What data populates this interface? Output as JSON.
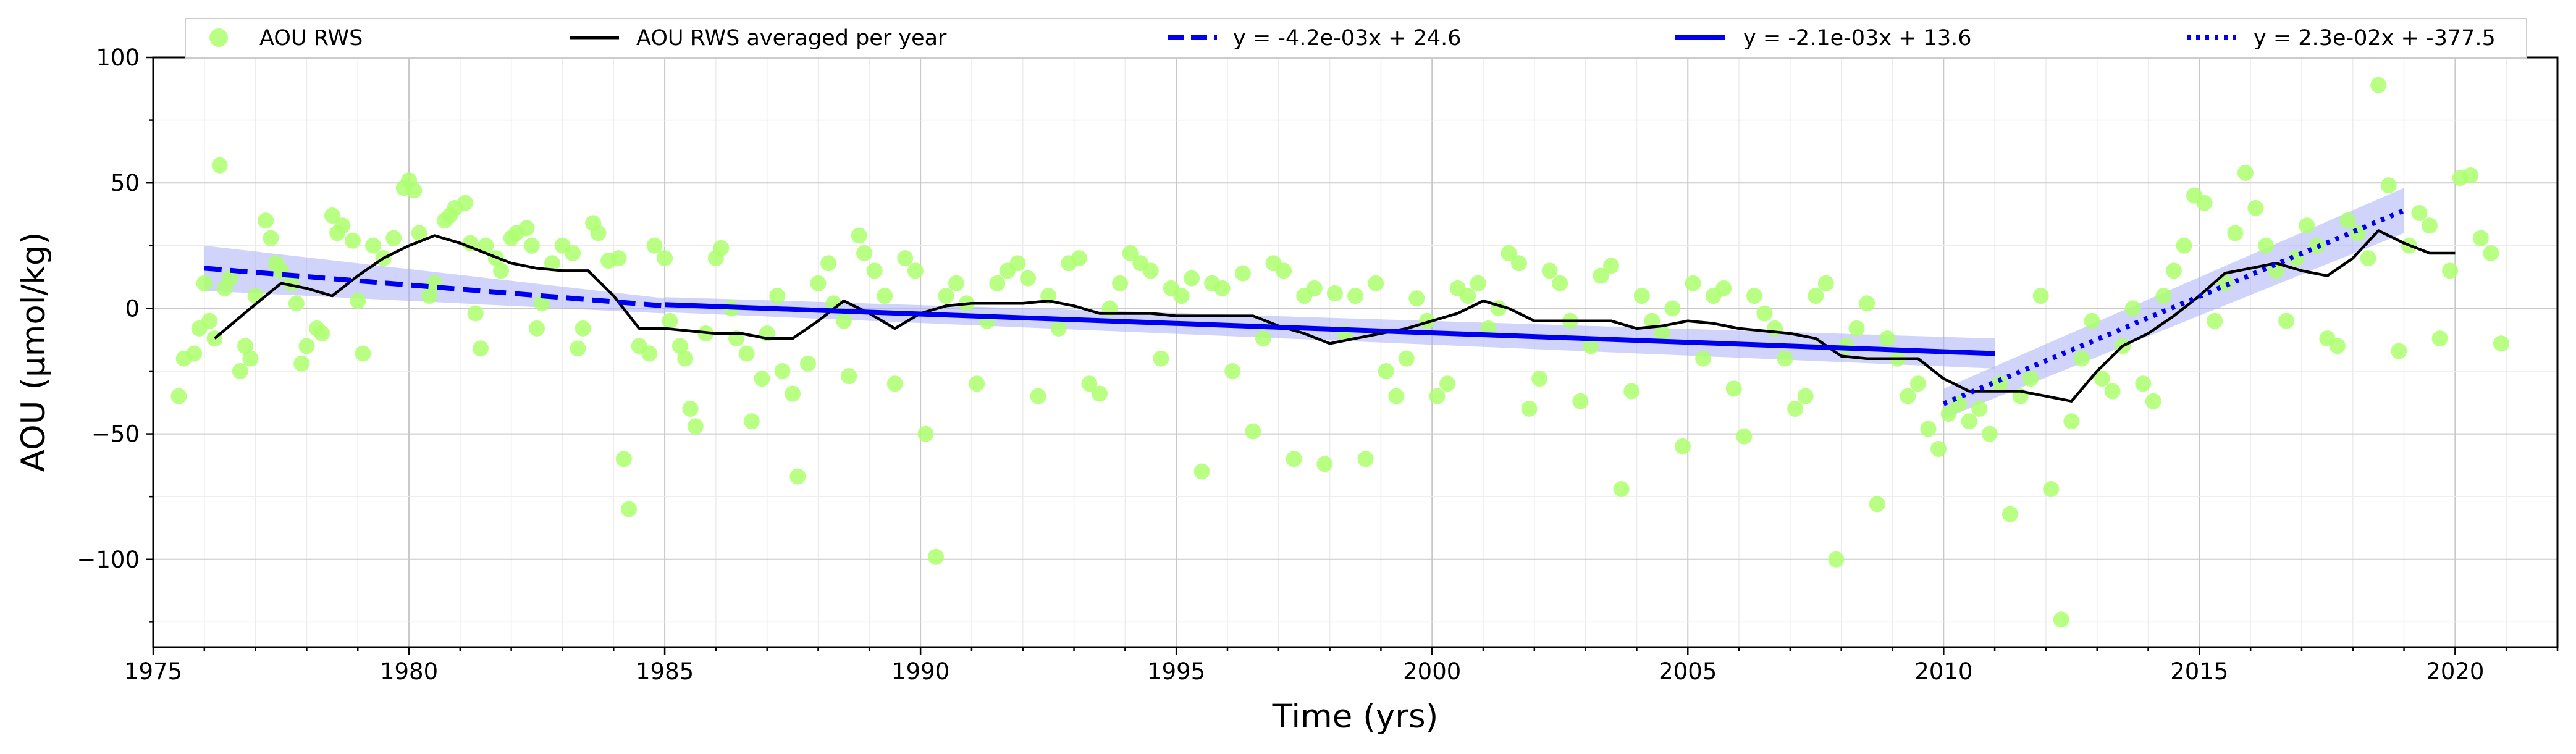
{
  "chart_data": {
    "type": "scatter",
    "title": "",
    "xlabel": "Time (yrs)",
    "ylabel": "AOU (µmol/kg)",
    "xlim": [
      1975,
      2022
    ],
    "ylim": [
      -135,
      100
    ],
    "xticks": [
      1975,
      1980,
      1985,
      1990,
      1995,
      2000,
      2005,
      2010,
      2015,
      2020
    ],
    "yticks": [
      -100,
      -50,
      0,
      50,
      100
    ],
    "tick_labels_x": [
      "1975",
      "1980",
      "1985",
      "1990",
      "1995",
      "2000",
      "2005",
      "2010",
      "2015",
      "2020"
    ],
    "tick_labels_y": [
      "−100",
      "−50",
      "0",
      "50",
      "100"
    ],
    "grid": true,
    "legend_position": "top",
    "legend": [
      {
        "label": "AOU RWS",
        "kind": "marker",
        "color": "#adff6f"
      },
      {
        "label": "AOU RWS averaged per year",
        "kind": "line",
        "color": "#000000"
      },
      {
        "label": "y = -4.2e-03x + 24.6",
        "kind": "dashed",
        "color": "#0000ee"
      },
      {
        "label": "y = -2.1e-03x + 13.6",
        "kind": "solid",
        "color": "#0000ee"
      },
      {
        "label": "y = 2.3e-02x + -377.5",
        "kind": "dotted",
        "color": "#0000ee"
      }
    ],
    "colors": {
      "scatter": "#adff6f",
      "average": "#000000",
      "fit": "#0000ee",
      "band": "#aab0f5"
    },
    "scatter_points": [
      [
        1975.5,
        -35
      ],
      [
        1975.6,
        -20
      ],
      [
        1975.8,
        -18
      ],
      [
        1975.9,
        -8
      ],
      [
        1976.0,
        10
      ],
      [
        1976.1,
        -5
      ],
      [
        1976.2,
        -12
      ],
      [
        1976.3,
        57
      ],
      [
        1976.4,
        8
      ],
      [
        1976.5,
        12
      ],
      [
        1976.7,
        -25
      ],
      [
        1976.8,
        -15
      ],
      [
        1976.9,
        -20
      ],
      [
        1977.0,
        5
      ],
      [
        1977.2,
        35
      ],
      [
        1977.3,
        28
      ],
      [
        1977.4,
        18
      ],
      [
        1977.5,
        15
      ],
      [
        1977.7,
        10
      ],
      [
        1977.8,
        2
      ],
      [
        1977.9,
        -22
      ],
      [
        1978.0,
        -15
      ],
      [
        1978.2,
        -8
      ],
      [
        1978.3,
        -10
      ],
      [
        1978.5,
        37
      ],
      [
        1978.6,
        30
      ],
      [
        1978.7,
        33
      ],
      [
        1978.9,
        27
      ],
      [
        1979.0,
        3
      ],
      [
        1979.1,
        -18
      ],
      [
        1979.3,
        25
      ],
      [
        1979.5,
        20
      ],
      [
        1979.7,
        28
      ],
      [
        1979.9,
        48
      ],
      [
        1980.0,
        51
      ],
      [
        1980.1,
        47
      ],
      [
        1980.2,
        30
      ],
      [
        1980.4,
        5
      ],
      [
        1980.5,
        10
      ],
      [
        1980.7,
        35
      ],
      [
        1980.8,
        37
      ],
      [
        1980.9,
        40
      ],
      [
        1981.1,
        42
      ],
      [
        1981.2,
        26
      ],
      [
        1981.3,
        -2
      ],
      [
        1981.4,
        -16
      ],
      [
        1981.5,
        25
      ],
      [
        1981.7,
        20
      ],
      [
        1981.8,
        15
      ],
      [
        1982.0,
        28
      ],
      [
        1982.1,
        30
      ],
      [
        1982.3,
        32
      ],
      [
        1982.4,
        25
      ],
      [
        1982.5,
        -8
      ],
      [
        1982.6,
        2
      ],
      [
        1982.8,
        18
      ],
      [
        1983.0,
        25
      ],
      [
        1983.2,
        22
      ],
      [
        1983.3,
        -16
      ],
      [
        1983.4,
        -8
      ],
      [
        1983.6,
        34
      ],
      [
        1983.7,
        30
      ],
      [
        1983.9,
        19
      ],
      [
        1984.1,
        20
      ],
      [
        1984.2,
        -60
      ],
      [
        1984.3,
        -80
      ],
      [
        1984.5,
        -15
      ],
      [
        1984.7,
        -18
      ],
      [
        1984.8,
        25
      ],
      [
        1985.0,
        20
      ],
      [
        1985.1,
        -5
      ],
      [
        1985.3,
        -15
      ],
      [
        1985.4,
        -20
      ],
      [
        1985.5,
        -40
      ],
      [
        1985.6,
        -47
      ],
      [
        1985.8,
        -10
      ],
      [
        1986.0,
        20
      ],
      [
        1986.1,
        24
      ],
      [
        1986.3,
        0
      ],
      [
        1986.4,
        -12
      ],
      [
        1986.6,
        -18
      ],
      [
        1986.7,
        -45
      ],
      [
        1986.9,
        -28
      ],
      [
        1987.0,
        -10
      ],
      [
        1987.2,
        5
      ],
      [
        1987.3,
        -25
      ],
      [
        1987.5,
        -34
      ],
      [
        1987.6,
        -67
      ],
      [
        1987.8,
        -22
      ],
      [
        1988.0,
        10
      ],
      [
        1988.2,
        18
      ],
      [
        1988.3,
        2
      ],
      [
        1988.5,
        -5
      ],
      [
        1988.6,
        -27
      ],
      [
        1988.8,
        29
      ],
      [
        1988.9,
        22
      ],
      [
        1989.1,
        15
      ],
      [
        1989.3,
        5
      ],
      [
        1989.5,
        -30
      ],
      [
        1989.7,
        20
      ],
      [
        1989.9,
        15
      ],
      [
        1990.1,
        -50
      ],
      [
        1990.3,
        -99
      ],
      [
        1990.5,
        5
      ],
      [
        1990.7,
        10
      ],
      [
        1990.9,
        2
      ],
      [
        1991.1,
        -30
      ],
      [
        1991.3,
        -5
      ],
      [
        1991.5,
        10
      ],
      [
        1991.7,
        15
      ],
      [
        1991.9,
        18
      ],
      [
        1992.1,
        12
      ],
      [
        1992.3,
        -35
      ],
      [
        1992.5,
        5
      ],
      [
        1992.7,
        -8
      ],
      [
        1992.9,
        18
      ],
      [
        1993.1,
        20
      ],
      [
        1993.3,
        -30
      ],
      [
        1993.5,
        -34
      ],
      [
        1993.7,
        0
      ],
      [
        1993.9,
        10
      ],
      [
        1994.1,
        22
      ],
      [
        1994.3,
        18
      ],
      [
        1994.5,
        15
      ],
      [
        1994.7,
        -20
      ],
      [
        1994.9,
        8
      ],
      [
        1995.1,
        5
      ],
      [
        1995.3,
        12
      ],
      [
        1995.5,
        -65
      ],
      [
        1995.7,
        10
      ],
      [
        1995.9,
        8
      ],
      [
        1996.1,
        -25
      ],
      [
        1996.3,
        14
      ],
      [
        1996.5,
        -49
      ],
      [
        1996.7,
        -12
      ],
      [
        1996.9,
        18
      ],
      [
        1997.1,
        15
      ],
      [
        1997.3,
        -60
      ],
      [
        1997.5,
        5
      ],
      [
        1997.7,
        8
      ],
      [
        1997.9,
        -62
      ],
      [
        1998.1,
        6
      ],
      [
        1998.3,
        -10
      ],
      [
        1998.5,
        5
      ],
      [
        1998.7,
        -60
      ],
      [
        1998.9,
        10
      ],
      [
        1999.1,
        -25
      ],
      [
        1999.3,
        -35
      ],
      [
        1999.5,
        -20
      ],
      [
        1999.7,
        4
      ],
      [
        1999.9,
        -5
      ],
      [
        2000.1,
        -35
      ],
      [
        2000.3,
        -30
      ],
      [
        2000.5,
        8
      ],
      [
        2000.7,
        5
      ],
      [
        2000.9,
        10
      ],
      [
        2001.1,
        -8
      ],
      [
        2001.3,
        0
      ],
      [
        2001.5,
        22
      ],
      [
        2001.7,
        18
      ],
      [
        2001.9,
        -40
      ],
      [
        2002.1,
        -28
      ],
      [
        2002.3,
        15
      ],
      [
        2002.5,
        10
      ],
      [
        2002.7,
        -5
      ],
      [
        2002.9,
        -37
      ],
      [
        2003.1,
        -15
      ],
      [
        2003.3,
        13
      ],
      [
        2003.5,
        17
      ],
      [
        2003.7,
        -72
      ],
      [
        2003.9,
        -33
      ],
      [
        2004.1,
        5
      ],
      [
        2004.3,
        -5
      ],
      [
        2004.5,
        -10
      ],
      [
        2004.7,
        0
      ],
      [
        2004.9,
        -55
      ],
      [
        2005.1,
        10
      ],
      [
        2005.3,
        -20
      ],
      [
        2005.5,
        5
      ],
      [
        2005.7,
        8
      ],
      [
        2005.9,
        -32
      ],
      [
        2006.1,
        -51
      ],
      [
        2006.3,
        5
      ],
      [
        2006.5,
        -2
      ],
      [
        2006.7,
        -8
      ],
      [
        2006.9,
        -20
      ],
      [
        2007.1,
        -40
      ],
      [
        2007.3,
        -35
      ],
      [
        2007.5,
        5
      ],
      [
        2007.7,
        10
      ],
      [
        2007.9,
        -100
      ],
      [
        2008.1,
        -15
      ],
      [
        2008.3,
        -8
      ],
      [
        2008.5,
        2
      ],
      [
        2008.7,
        -78
      ],
      [
        2008.9,
        -12
      ],
      [
        2009.1,
        -20
      ],
      [
        2009.3,
        -35
      ],
      [
        2009.5,
        -30
      ],
      [
        2009.7,
        -48
      ],
      [
        2009.9,
        -56
      ],
      [
        2010.1,
        -42
      ],
      [
        2010.3,
        -38
      ],
      [
        2010.5,
        -45
      ],
      [
        2010.7,
        -40
      ],
      [
        2010.9,
        -50
      ],
      [
        2011.1,
        -30
      ],
      [
        2011.3,
        -82
      ],
      [
        2011.5,
        -35
      ],
      [
        2011.7,
        -28
      ],
      [
        2011.9,
        5
      ],
      [
        2012.1,
        -72
      ],
      [
        2012.3,
        -124
      ],
      [
        2012.5,
        -45
      ],
      [
        2012.7,
        -20
      ],
      [
        2012.9,
        -5
      ],
      [
        2013.1,
        -28
      ],
      [
        2013.3,
        -33
      ],
      [
        2013.5,
        -15
      ],
      [
        2013.7,
        0
      ],
      [
        2013.9,
        -30
      ],
      [
        2014.1,
        -37
      ],
      [
        2014.3,
        5
      ],
      [
        2014.5,
        15
      ],
      [
        2014.7,
        25
      ],
      [
        2014.9,
        45
      ],
      [
        2015.1,
        42
      ],
      [
        2015.3,
        -5
      ],
      [
        2015.5,
        10
      ],
      [
        2015.7,
        30
      ],
      [
        2015.9,
        54
      ],
      [
        2016.1,
        40
      ],
      [
        2016.3,
        25
      ],
      [
        2016.5,
        15
      ],
      [
        2016.7,
        -5
      ],
      [
        2016.9,
        20
      ],
      [
        2017.1,
        33
      ],
      [
        2017.3,
        25
      ],
      [
        2017.5,
        -12
      ],
      [
        2017.7,
        -15
      ],
      [
        2017.9,
        35
      ],
      [
        2018.1,
        30
      ],
      [
        2018.3,
        20
      ],
      [
        2018.5,
        89
      ],
      [
        2018.7,
        49
      ],
      [
        2018.9,
        -17
      ],
      [
        2019.1,
        25
      ],
      [
        2019.3,
        38
      ],
      [
        2019.5,
        33
      ],
      [
        2019.7,
        -12
      ],
      [
        2019.9,
        15
      ],
      [
        2020.1,
        52
      ],
      [
        2020.3,
        53
      ],
      [
        2020.5,
        28
      ],
      [
        2020.7,
        22
      ],
      [
        2020.9,
        -14
      ]
    ],
    "averaged_series": {
      "x": [
        1976.2,
        1976.9,
        1977.5,
        1978.0,
        1978.5,
        1979.0,
        1979.5,
        1980.0,
        1980.5,
        1981.0,
        1981.5,
        1982.0,
        1982.5,
        1983.0,
        1983.5,
        1984.0,
        1984.5,
        1985.0,
        1985.5,
        1986.0,
        1986.5,
        1987.0,
        1987.5,
        1988.0,
        1988.5,
        1989.0,
        1989.5,
        1990.0,
        1990.5,
        1991.0,
        1991.5,
        1992.0,
        1992.5,
        1993.0,
        1993.5,
        1994.0,
        1994.5,
        1995.0,
        1995.5,
        1996.0,
        1996.5,
        1997.0,
        1997.5,
        1998.0,
        1998.5,
        1999.0,
        1999.5,
        2000.0,
        2000.5,
        2001.0,
        2001.5,
        2002.0,
        2002.5,
        2003.0,
        2003.5,
        2004.0,
        2004.5,
        2005.0,
        2005.5,
        2006.0,
        2006.5,
        2007.0,
        2007.5,
        2008.0,
        2008.5,
        2009.0,
        2009.5,
        2010.0,
        2010.5,
        2011.0,
        2011.5,
        2012.0,
        2012.5,
        2013.0,
        2013.5,
        2014.0,
        2014.5,
        2015.0,
        2015.5,
        2016.0,
        2016.5,
        2017.0,
        2017.5,
        2018.0,
        2018.5,
        2019.0,
        2019.5,
        2020.0
      ],
      "y": [
        -12,
        0,
        10,
        8,
        5,
        13,
        20,
        25,
        29,
        26,
        22,
        18,
        16,
        15,
        15,
        5,
        -8,
        -8,
        -9,
        -10,
        -10,
        -12,
        -12,
        -5,
        3,
        -2,
        -8,
        -2,
        1,
        2,
        2,
        2,
        3,
        1,
        -2,
        -2,
        -2,
        -3,
        -3,
        -3,
        -3,
        -7,
        -10,
        -14,
        -12,
        -10,
        -8,
        -5,
        -2,
        3,
        0,
        -5,
        -5,
        -5,
        -5,
        -8,
        -7,
        -5,
        -6,
        -8,
        -9,
        -10,
        -12,
        -19,
        -20,
        -20,
        -20,
        -28,
        -33,
        -33,
        -33,
        -35,
        -37,
        -25,
        -15,
        -10,
        -3,
        5,
        14,
        16,
        18,
        15,
        13,
        20,
        31,
        26,
        22,
        22
      ],
      "label": "AOU RWS averaged per year"
    },
    "fits": [
      {
        "label": "y = -4.2e-03x + 24.6",
        "style": "dashed",
        "x": [
          1976.0,
          1985.0
        ],
        "y": [
          16,
          1
        ],
        "band_width": [
          9,
          3
        ]
      },
      {
        "label": "y = -2.1e-03x + 13.6",
        "style": "solid",
        "x": [
          1985.0,
          2011.0
        ],
        "y": [
          1.5,
          -18
        ],
        "band_width": [
          3,
          6
        ]
      },
      {
        "label": "y = 2.3e-02x + -377.5",
        "style": "dotted",
        "x": [
          2010.0,
          2019.0
        ],
        "y": [
          -38,
          39
        ],
        "band_width": [
          6,
          9
        ]
      }
    ]
  }
}
